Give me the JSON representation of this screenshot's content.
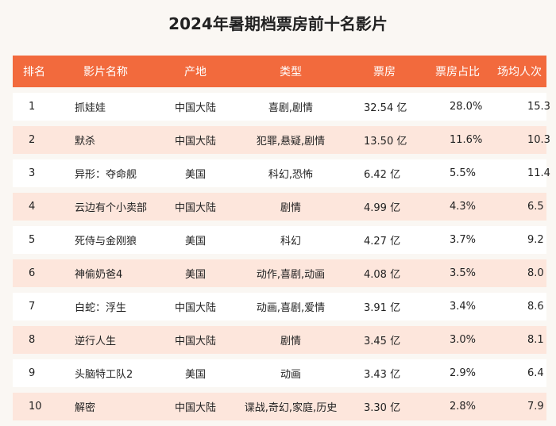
{
  "title": "2024年暑期档票房前十名影片",
  "headers": [
    "排名",
    "影片名称",
    "产地",
    "类型",
    "票房",
    "票房占比",
    "场均人次"
  ],
  "rows": [
    {
      "rank": "1",
      "name": "抓娃娃",
      "origin": "中国大陆",
      "genre": "喜剧,剧情",
      "gross": "32.54 亿",
      "share": "28.0%",
      "avg": "15.3"
    },
    {
      "rank": "2",
      "name": "默杀",
      "origin": "中国大陆",
      "genre": "犯罪,悬疑,剧情",
      "gross": "13.50 亿",
      "share": "11.6%",
      "avg": "10.3"
    },
    {
      "rank": "3",
      "name": "异形：夺命舰",
      "origin": "美国",
      "genre": "科幻,恐怖",
      "gross": "6.42 亿",
      "share": "5.5%",
      "avg": "11.4"
    },
    {
      "rank": "4",
      "name": "云边有个小卖部",
      "origin": "中国大陆",
      "genre": "剧情",
      "gross": "4.99 亿",
      "share": "4.3%",
      "avg": "6.5"
    },
    {
      "rank": "5",
      "name": "死侍与金刚狼",
      "origin": "美国",
      "genre": "科幻",
      "gross": "4.27 亿",
      "share": "3.7%",
      "avg": "9.2"
    },
    {
      "rank": "6",
      "name": "神偷奶爸4",
      "origin": "美国",
      "genre": "动作,喜剧,动画",
      "gross": "4.08 亿",
      "share": "3.5%",
      "avg": "8.0"
    },
    {
      "rank": "7",
      "name": "白蛇：浮生",
      "origin": "中国大陆",
      "genre": "动画,喜剧,爱情",
      "gross": "3.91 亿",
      "share": "3.4%",
      "avg": "8.6"
    },
    {
      "rank": "8",
      "name": "逆行人生",
      "origin": "中国大陆",
      "genre": "剧情",
      "gross": "3.45 亿",
      "share": "3.0%",
      "avg": "8.1"
    },
    {
      "rank": "9",
      "name": "头脑特工队2",
      "origin": "美国",
      "genre": "动画",
      "gross": "3.43 亿",
      "share": "2.9%",
      "avg": "6.4"
    },
    {
      "rank": "10",
      "name": "解密",
      "origin": "中国大陆",
      "genre": "谍战,奇幻,家庭,历史",
      "gross": "3.30 亿",
      "share": "2.8%",
      "avg": "7.9"
    }
  ],
  "colors": {
    "header_bg": "#f26a3d",
    "stripe": "#fde6dc",
    "row": "#ffffff"
  }
}
